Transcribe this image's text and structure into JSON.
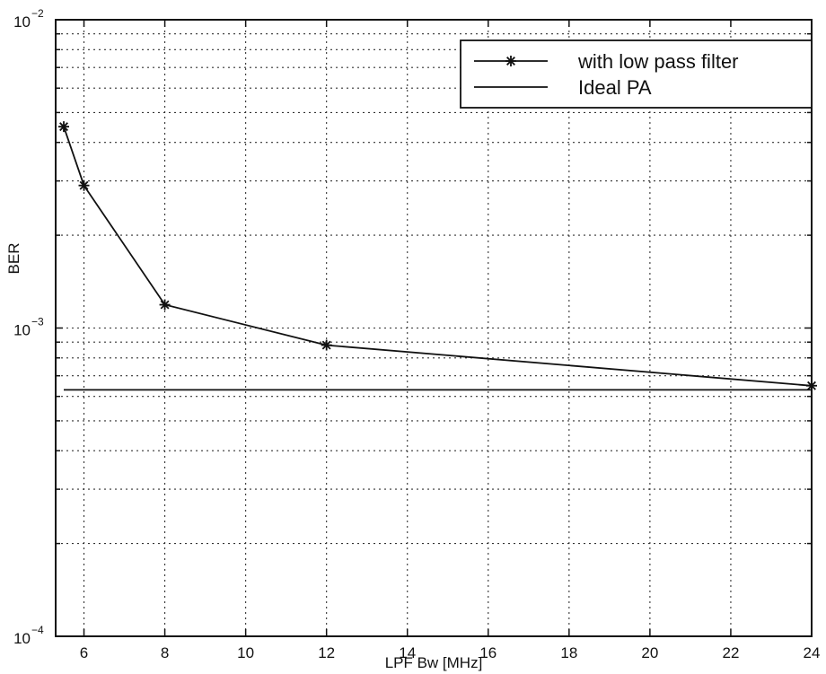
{
  "chart_data": {
    "type": "line",
    "xlabel": "LPF Bw [MHz]",
    "ylabel": "BER",
    "xlim": [
      5.3,
      24
    ],
    "ylim": [
      0.0001,
      0.01
    ],
    "yscale": "log",
    "grid": true,
    "legend_position": "top-right",
    "x_ticks": [
      6,
      8,
      10,
      12,
      14,
      16,
      18,
      20,
      22,
      24
    ],
    "y_ticks": [
      {
        "value": 0.01,
        "base": "10",
        "exp": "−2"
      },
      {
        "value": 0.001,
        "base": "10",
        "exp": "−3"
      },
      {
        "value": 0.0001,
        "base": "10",
        "exp": "−4"
      }
    ],
    "series": [
      {
        "name": "with low pass filter",
        "marker": "*",
        "color": "#111111",
        "x": [
          5.5,
          6,
          8,
          12,
          24
        ],
        "y": [
          0.0045,
          0.0029,
          0.00119,
          0.00088,
          0.00065
        ]
      },
      {
        "name": "Ideal PA",
        "marker": "none",
        "color": "#111111",
        "x": [
          5.5,
          24
        ],
        "y": [
          0.00063,
          0.00063
        ]
      }
    ]
  }
}
